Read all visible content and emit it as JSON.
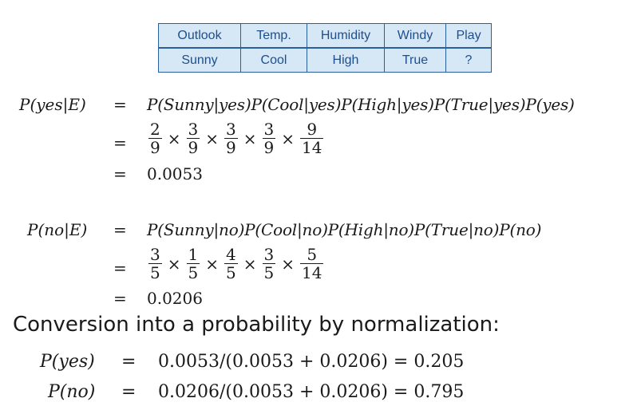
{
  "table": {
    "headers": [
      "Outlook",
      "Temp.",
      "Humidity",
      "Windy",
      "Play"
    ],
    "row": [
      "Sunny",
      "Cool",
      "High",
      "True",
      "?"
    ]
  },
  "yes_block": {
    "lhs": "P(yes|E)",
    "eq": "=",
    "expr": "P(Sunny|yes)P(Cool|yes)P(High|yes)P(True|yes)P(yes)",
    "fractions": [
      {
        "num": "2",
        "den": "9"
      },
      {
        "num": "3",
        "den": "9"
      },
      {
        "num": "3",
        "den": "9"
      },
      {
        "num": "3",
        "den": "9"
      },
      {
        "num": "9",
        "den": "14"
      }
    ],
    "result": "0.0053"
  },
  "no_block": {
    "lhs": "P(no|E)",
    "eq": "=",
    "expr": "P(Sunny|no)P(Cool|no)P(High|no)P(True|no)P(no)",
    "fractions": [
      {
        "num": "3",
        "den": "5"
      },
      {
        "num": "1",
        "den": "5"
      },
      {
        "num": "4",
        "den": "5"
      },
      {
        "num": "3",
        "den": "5"
      },
      {
        "num": "5",
        "den": "14"
      }
    ],
    "result": "0.0206"
  },
  "times_symbol": "×",
  "heading": "Conversion into a probability by normalization:",
  "normalization": [
    {
      "lhs": "P(yes)",
      "eq": "=",
      "rhs": "0.0053/(0.0053 + 0.0206) = 0.205"
    },
    {
      "lhs": "P(no)",
      "eq": "=",
      "rhs": "0.0206/(0.0053 + 0.0206) = 0.795"
    }
  ]
}
